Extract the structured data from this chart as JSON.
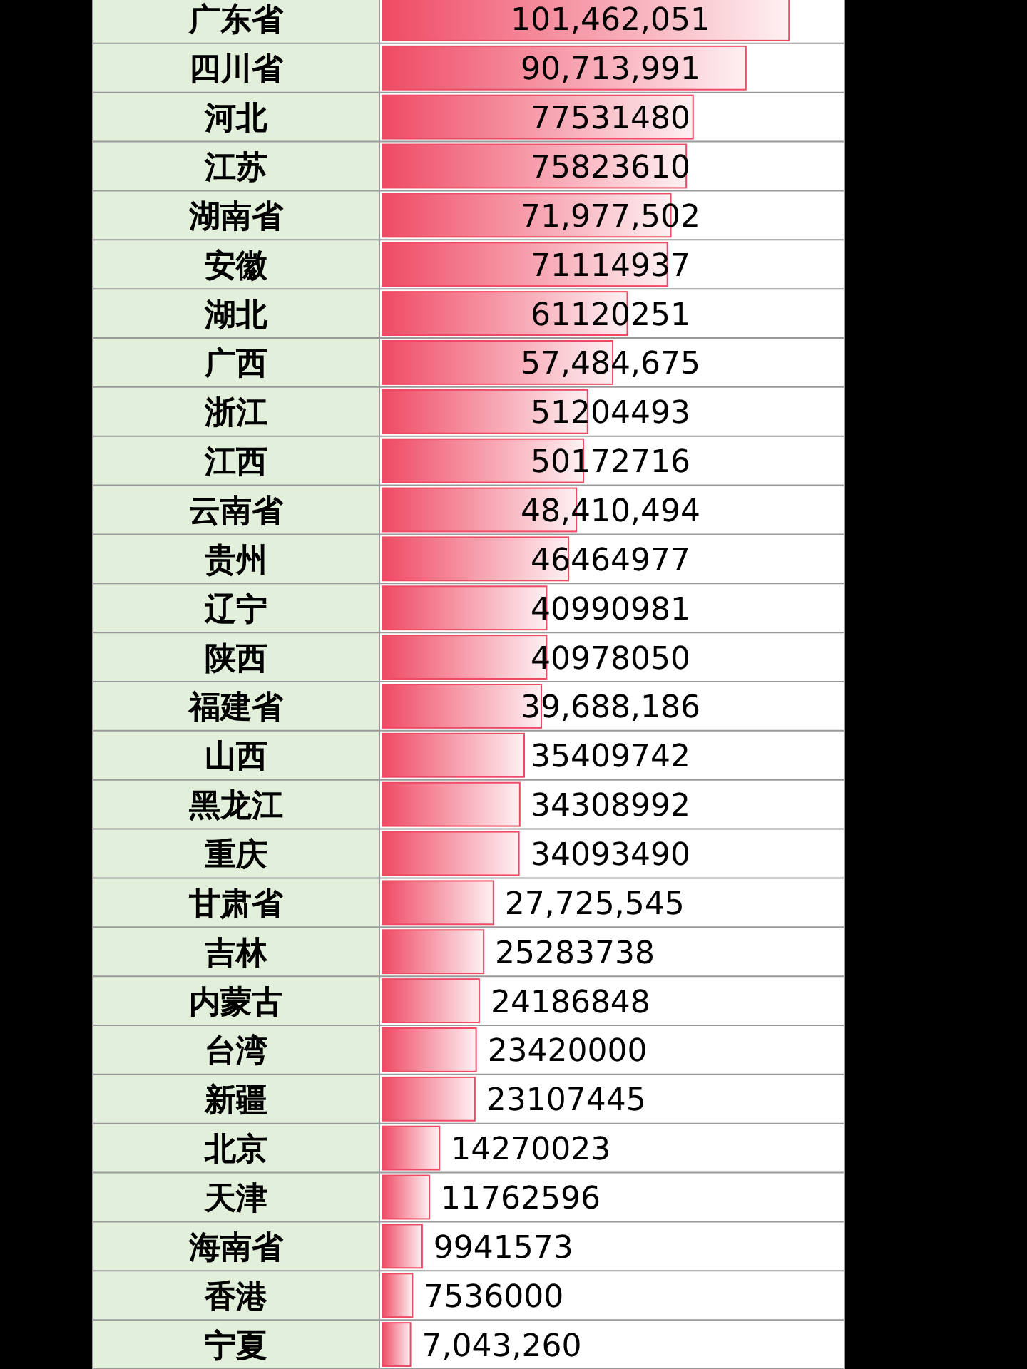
{
  "chart_data": {
    "type": "bar",
    "orientation": "horizontal",
    "color": "#ef4a64",
    "categories": [
      "广东省",
      "四川省",
      "河北",
      "江苏",
      "湖南省",
      "安徽",
      "湖北",
      "广西",
      "浙江",
      "江西",
      "云南省",
      "贵州",
      "辽宁",
      "陕西",
      "福建省",
      "山西",
      "黑龙江",
      "重庆",
      "甘肃省",
      "吉林",
      "内蒙古",
      "台湾",
      "新疆",
      "北京",
      "天津",
      "海南省",
      "香港",
      "宁夏"
    ],
    "values": [
      101462051,
      90713991,
      77531480,
      75823610,
      71977502,
      71114937,
      61120251,
      57484675,
      51204493,
      50172716,
      48410494,
      46464977,
      40990981,
      40978050,
      39688186,
      35409742,
      34308992,
      34093490,
      27725545,
      25283738,
      24186848,
      23420000,
      23107445,
      14270023,
      11762596,
      9941573,
      7536000,
      7043260
    ],
    "value_labels": [
      "101,462,051",
      "90,713,991",
      "77531480",
      "75823610",
      "71,977,502",
      "71114937",
      "61120251",
      "57,484,675",
      "51204493",
      "50172716",
      "48,410,494",
      "46464977",
      "40990981",
      "40978050",
      "39,688,186",
      "35409742",
      "34308992",
      "34093490",
      "27,725,545",
      "25283738",
      "24186848",
      "23420000",
      "23107445",
      "14270023",
      "11762596",
      "9941573",
      "7536000",
      "7,043,260"
    ]
  }
}
